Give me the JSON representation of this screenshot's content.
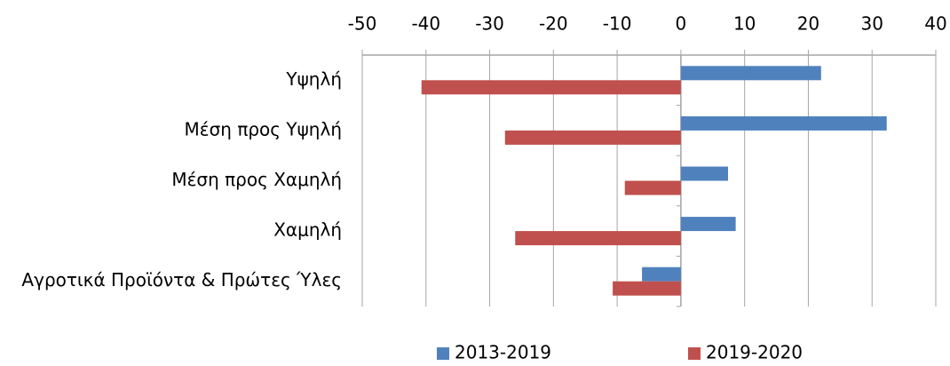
{
  "chart_data": {
    "type": "hbar",
    "categories": [
      "Υψηλή",
      "Μέση προς Υψηλή",
      "Μέση προς Χαμηλή",
      "Χαμηλή",
      "Αγροτικά Προϊόντα & Πρώτες Ύλες"
    ],
    "series": [
      {
        "name": "2013-2019",
        "color": "#4f81bd",
        "values": [
          22,
          32.3,
          7.4,
          8.6,
          -6.1
        ]
      },
      {
        "name": "2019-2020",
        "color": "#c0504d",
        "values": [
          -40.7,
          -27.6,
          -8.8,
          -26,
          -10.7
        ]
      }
    ],
    "xlim": [
      -50,
      40
    ],
    "xticks": [
      -50,
      -40,
      -30,
      -20,
      -10,
      0,
      10,
      20,
      30,
      40
    ],
    "grid": true,
    "legend": "bottom"
  }
}
